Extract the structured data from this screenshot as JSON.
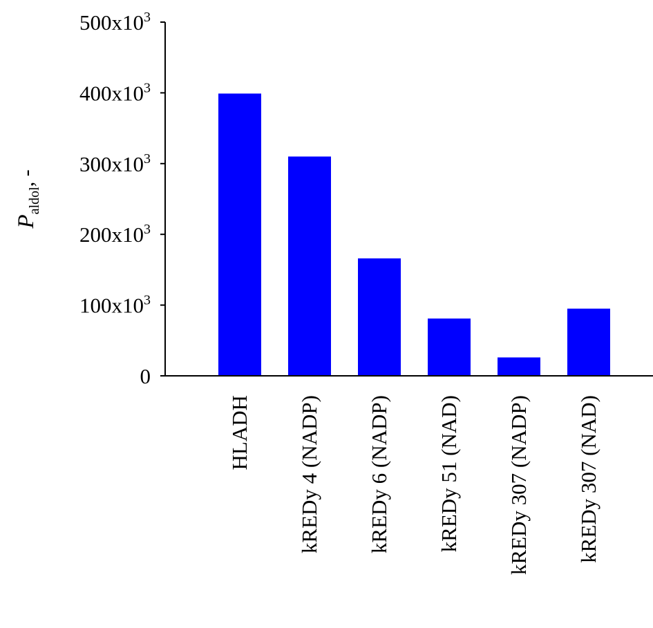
{
  "chart_data": {
    "type": "bar",
    "title": "",
    "xlabel": "",
    "ylabel": {
      "main": "P",
      "subscript": "aldol",
      "suffix": ", -"
    },
    "categories": [
      "HLADH",
      "kREDy 4 (NADP)",
      "kREDy 6 (NADP)",
      "kREDy 51 (NAD)",
      "kREDy 307 (NADP)",
      "kREDy 307 (NAD)"
    ],
    "values": [
      399000,
      310000,
      166000,
      81000,
      26000,
      95000
    ],
    "ylim": [
      0,
      500000
    ],
    "yticks": [
      {
        "value": 0,
        "base": "0",
        "exp": ""
      },
      {
        "value": 100000,
        "base": "100x10",
        "exp": "3"
      },
      {
        "value": 200000,
        "base": "200x10",
        "exp": "3"
      },
      {
        "value": 300000,
        "base": "300x10",
        "exp": "3"
      },
      {
        "value": 400000,
        "base": "400x10",
        "exp": "3"
      },
      {
        "value": 500000,
        "base": "500x10",
        "exp": "3"
      }
    ],
    "bar_color": "#0000FF",
    "grid": false,
    "legend": "none"
  }
}
